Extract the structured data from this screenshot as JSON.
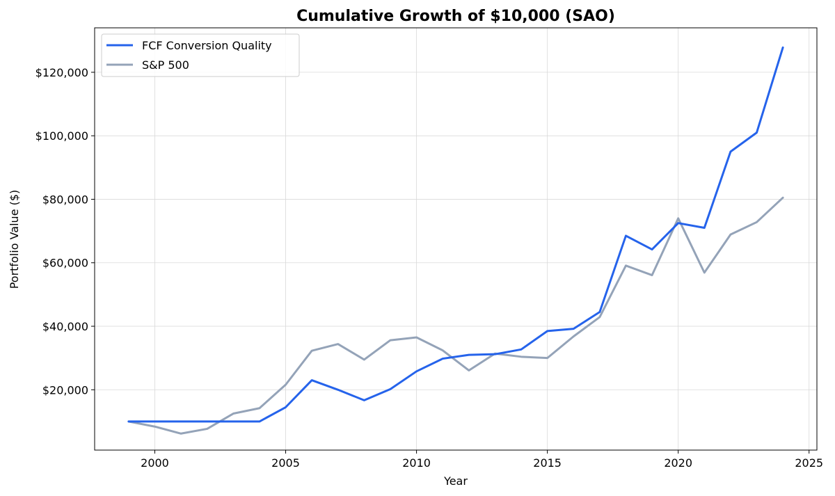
{
  "chart_data": {
    "type": "line",
    "title": "Cumulative Growth of $10,000 (SAO)",
    "xlabel": "Year",
    "ylabel": "Portfolio Value ($)",
    "xlim": [
      1997.7,
      2025.3
    ],
    "ylim": [
      1000,
      134000
    ],
    "xticks": [
      2000,
      2005,
      2010,
      2015,
      2020,
      2025
    ],
    "yticks": [
      20000,
      40000,
      60000,
      80000,
      100000,
      120000
    ],
    "ytick_labels": [
      "$20,000",
      "$40,000",
      "$60,000",
      "$80,000",
      "$100,000",
      "$120,000"
    ],
    "grid": true,
    "legend_position": "top-left",
    "x": [
      1999,
      2000,
      2001,
      2002,
      2003,
      2004,
      2005,
      2006,
      2007,
      2008,
      2009,
      2010,
      2011,
      2012,
      2013,
      2014,
      2015,
      2016,
      2017,
      2018,
      2019,
      2020,
      2021,
      2022,
      2023,
      2024
    ],
    "series": [
      {
        "name": "FCF Conversion Quality",
        "color": "#2563eb",
        "values": [
          10000,
          10000,
          10000,
          10000,
          10000,
          10000,
          14500,
          23000,
          20000,
          16700,
          20200,
          25800,
          29800,
          31000,
          31200,
          32700,
          38500,
          39200,
          44500,
          68500,
          64200,
          72500,
          71000,
          95000,
          101000,
          127800
        ]
      },
      {
        "name": "S&P 500",
        "color": "#94a3b8",
        "values": [
          10000,
          8400,
          6200,
          7700,
          12500,
          14200,
          21600,
          32300,
          34400,
          29500,
          35600,
          36500,
          32400,
          26100,
          31400,
          30400,
          30000,
          36800,
          42900,
          59100,
          56100,
          74000,
          56900,
          68900,
          72800,
          80500
        ]
      }
    ]
  }
}
